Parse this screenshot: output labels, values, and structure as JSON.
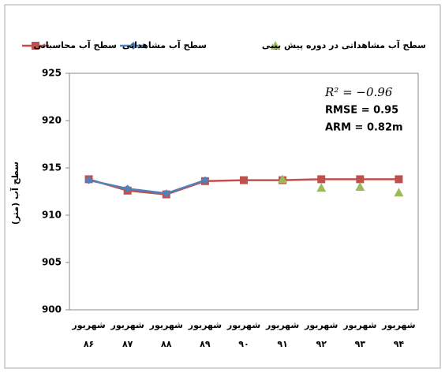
{
  "chart_data": {
    "type": "line",
    "y_axis_label": "سطح آب (متر)",
    "annotations": [
      "R² = −0.96",
      "RMSE = 0.95",
      "ARM = 0.82m"
    ],
    "categories": [
      "شهریور ۸۶",
      "شهریور ۸۷",
      "شهریور ۸۸",
      "شهریور ۸۹",
      "شهریور ۹۰",
      "شهریور ۹۱",
      "شهریور ۹۲",
      "شهریور ۹۳",
      "شهریور ۹۴"
    ],
    "series": [
      {
        "name": "سطح آب محاسباتی",
        "color": "#c0504d",
        "marker": "square",
        "line": true,
        "values": [
          913.8,
          912.6,
          912.2,
          913.6,
          913.7,
          913.7,
          913.8,
          913.8,
          913.8
        ]
      },
      {
        "name": "سطح آب مشاهداتی",
        "color": "#4f81bd",
        "marker": "diamond",
        "line": true,
        "values": [
          913.7,
          912.8,
          912.3,
          913.7,
          null,
          null,
          null,
          null,
          null
        ]
      },
      {
        "name": "سطح آب مشاهداتی در دوره پیش بینی",
        "color": "#9bbb59",
        "marker": "triangle",
        "line": false,
        "values": [
          null,
          null,
          null,
          null,
          null,
          913.8,
          912.9,
          913.0,
          912.4
        ]
      }
    ],
    "ylim": [
      900,
      925
    ],
    "yticks": [
      900,
      905,
      910,
      915,
      920,
      925
    ],
    "grid": false
  }
}
